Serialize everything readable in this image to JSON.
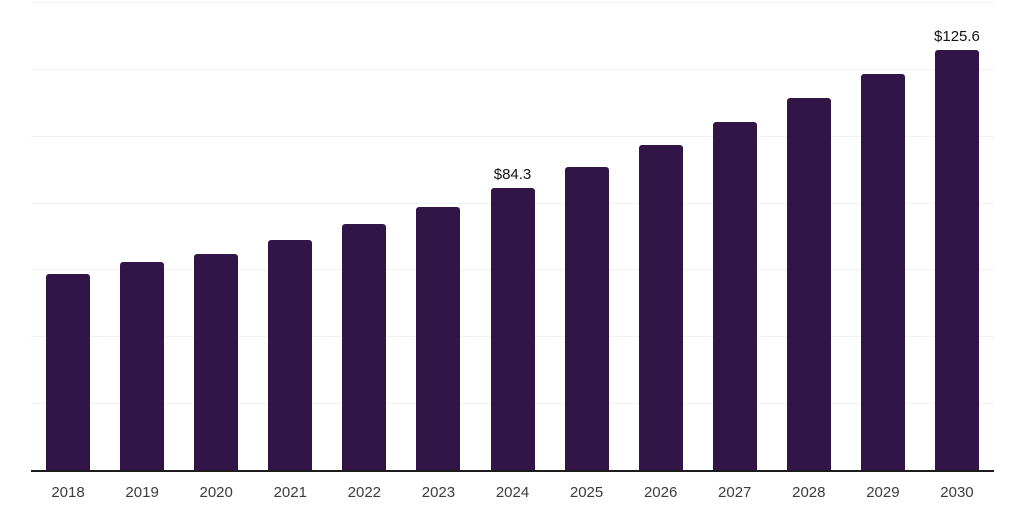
{
  "chart": {
    "background": "#ffffff",
    "bar_color": "#321547",
    "grid_color": "#f1f1f3",
    "axis_color": "#1c1c1c",
    "x_label_color": "#3c3c3c",
    "value_label_color": "#141414"
  },
  "chart_data": {
    "type": "bar",
    "title": "",
    "xlabel": "",
    "ylabel": "",
    "categories": [
      "2018",
      "2019",
      "2020",
      "2021",
      "2022",
      "2023",
      "2024",
      "2025",
      "2026",
      "2027",
      "2028",
      "2029",
      "2030"
    ],
    "values": [
      58.5,
      62.1,
      64.6,
      68.8,
      73.5,
      78.6,
      84.3,
      90.5,
      97.1,
      104.2,
      111.4,
      118.6,
      125.6
    ],
    "data_labels": [
      {
        "category": "2024",
        "text": "$84.3"
      },
      {
        "category": "2030",
        "text": "$125.6"
      }
    ],
    "ylim": [
      0,
      140
    ],
    "gridline_step": 20,
    "grid": true,
    "y_tick_labels_shown": false,
    "legend_position": "none"
  }
}
